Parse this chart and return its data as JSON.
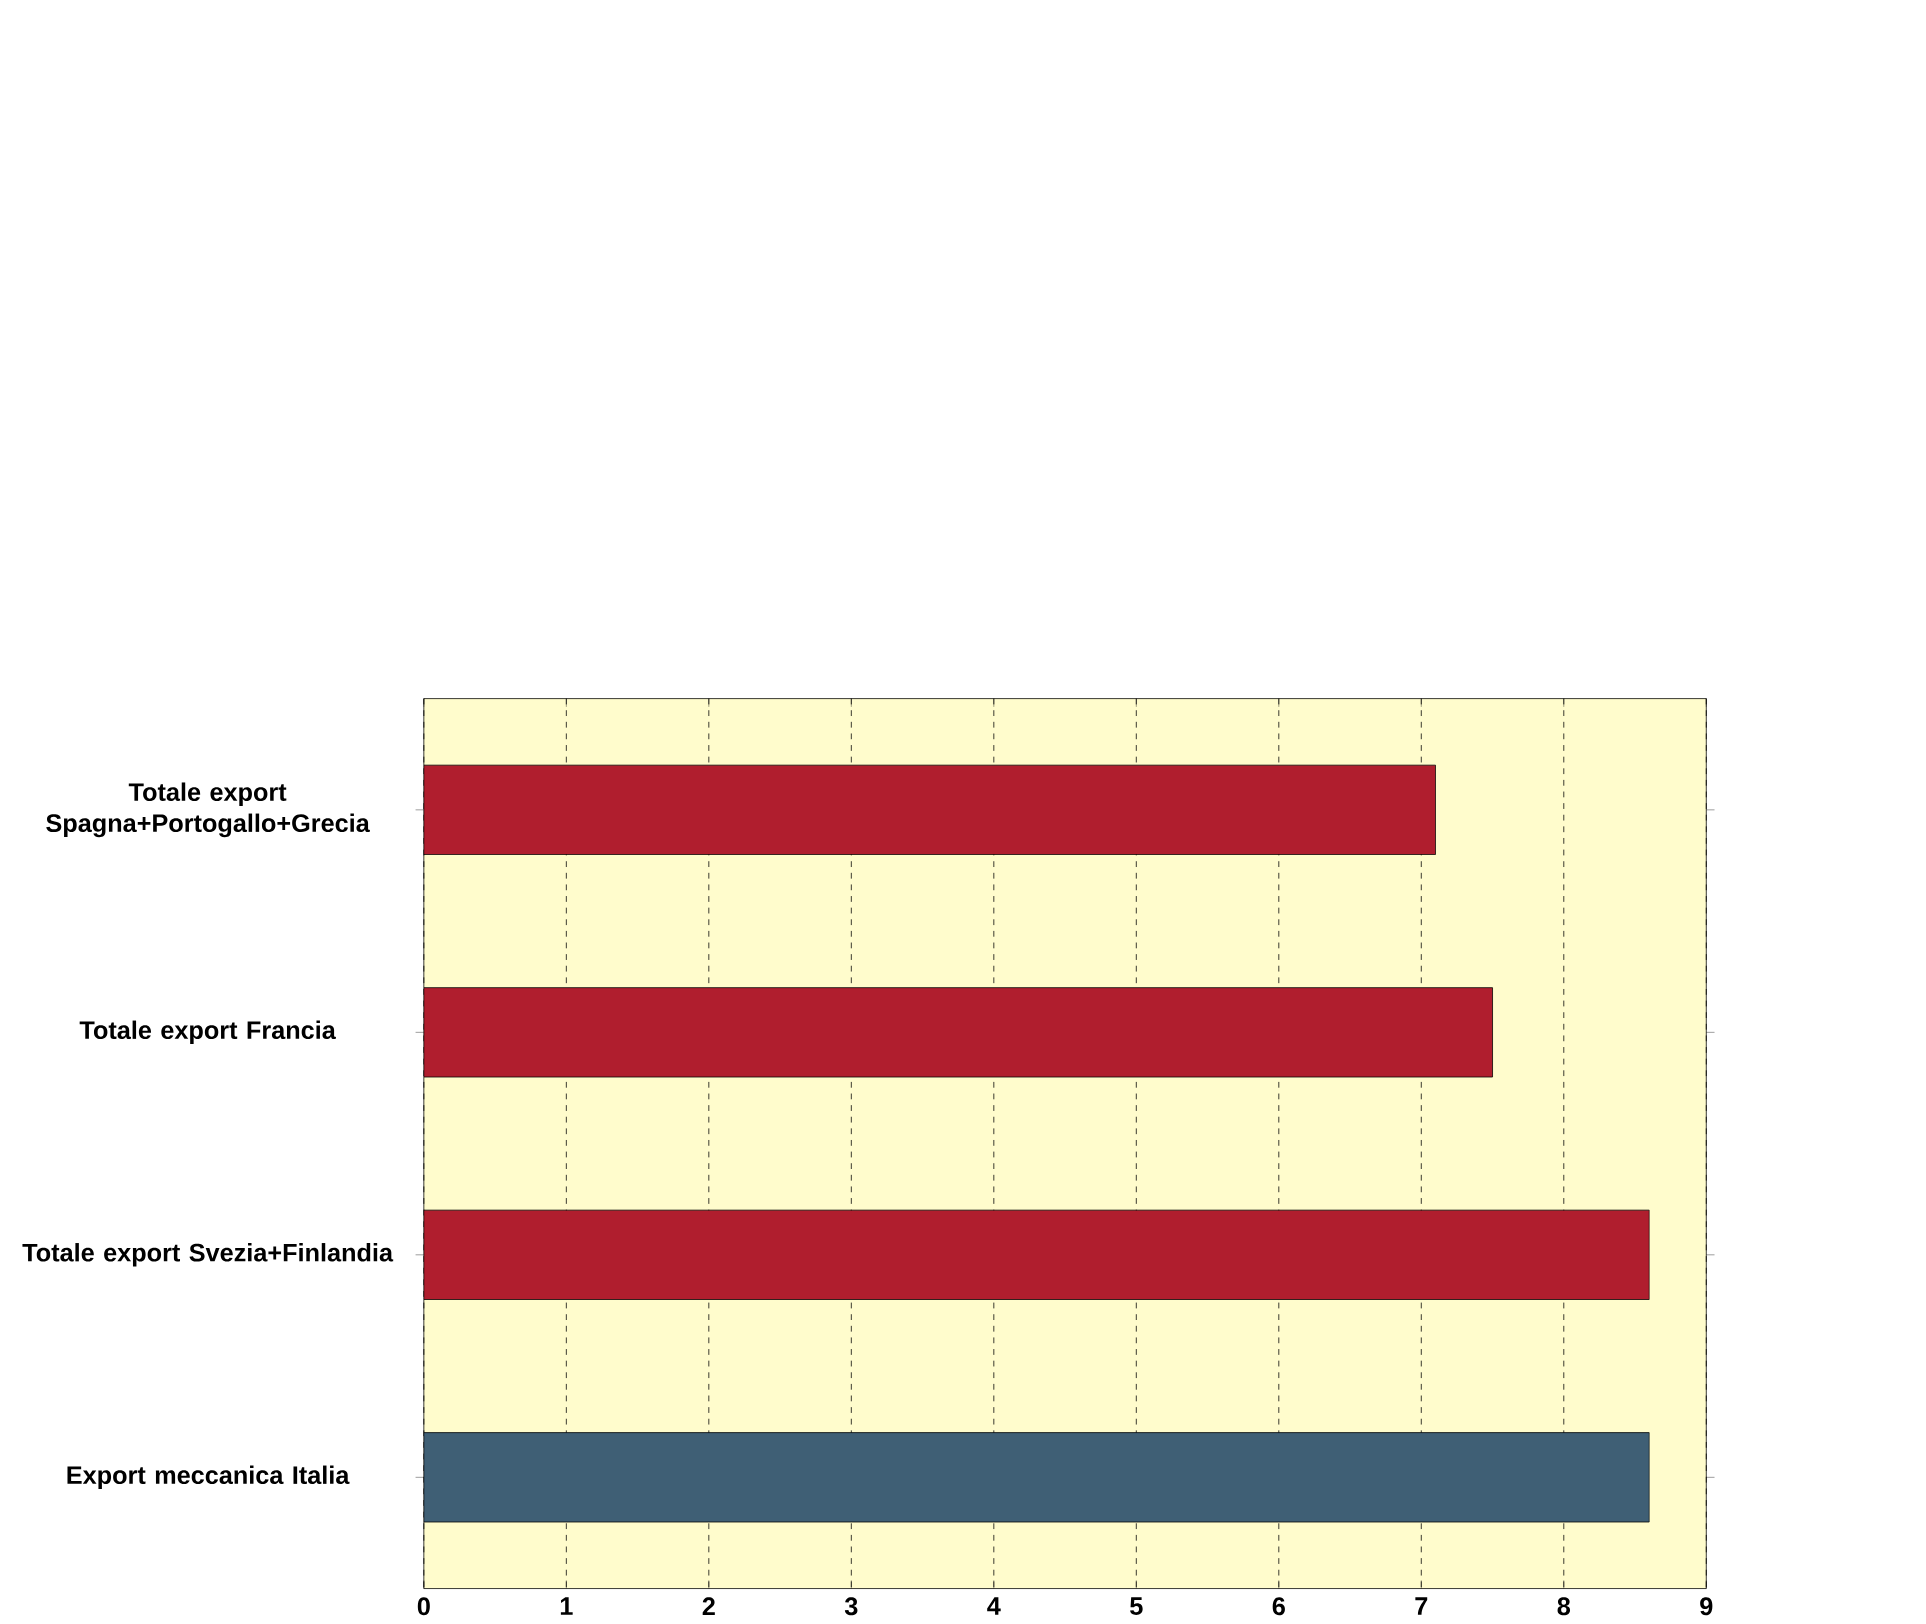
{
  "chart_data": {
    "type": "bar",
    "orientation": "horizontal",
    "categories": [
      "Totale export Spagna+Portogallo+Grecia",
      "Totale export Francia",
      "Totale export Svezia+Finlandia",
      "Export meccanica Italia"
    ],
    "values": [
      7.1,
      7.5,
      8.6,
      8.6
    ],
    "colors": [
      "#b01e2e",
      "#b01e2e",
      "#b01e2e",
      "#3f5f75"
    ],
    "xlim": [
      0,
      9
    ],
    "xticks": [
      0,
      1,
      2,
      3,
      4,
      5,
      6,
      7,
      8,
      9
    ],
    "grid": "x"
  }
}
